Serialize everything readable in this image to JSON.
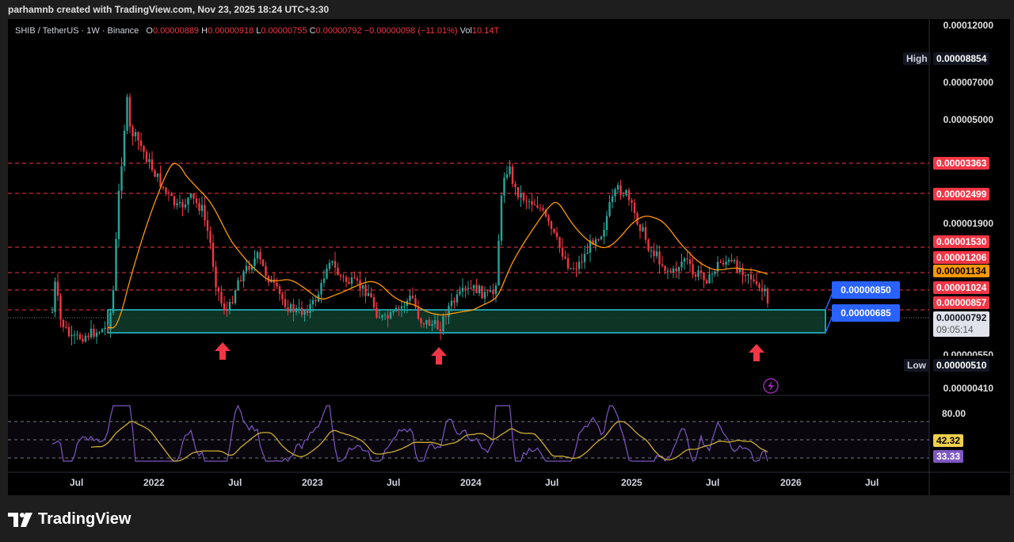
{
  "header": {
    "attribution": "parhamnb created with TradingView.com, Nov 23, 2025 18:24 UTC+3:30"
  },
  "legend": {
    "symbol": "SHIB / TetherUS · 1W · Binance",
    "o_label": "O",
    "o": "0.00000889",
    "h_label": "H",
    "h": "0.00000918",
    "l_label": "L",
    "l": "0.00000755",
    "c_label": "C",
    "c": "0.00000792",
    "change": "−0.00000098 (−11.01%)",
    "vol_label": "Vol",
    "vol": "10.14T"
  },
  "price_axis": {
    "ticks": [
      "0.00012000",
      "0.00007000",
      "0.00005000",
      "0.00001900",
      "0.00000550",
      "0.00000410"
    ],
    "high_label": "High",
    "high_value": "0.00008854",
    "low_label": "Low",
    "low_value": "0.00000510",
    "levels": [
      {
        "value": "0.00003363",
        "color": "#f23645"
      },
      {
        "value": "0.00002499",
        "color": "#f23645"
      },
      {
        "value": "0.00001530",
        "color": "#f23645"
      },
      {
        "value": "0.00001206",
        "color": "#f23645"
      },
      {
        "value": "0.00001134",
        "color": "#ff9800"
      },
      {
        "value": "0.00001024",
        "color": "#f23645"
      },
      {
        "value": "0.00000857",
        "color": "#f23645"
      }
    ],
    "last_price": "0.00000792",
    "countdown": "09:05:14"
  },
  "zone": {
    "top": "0.00000850",
    "bottom": "0.00000685"
  },
  "rsi": {
    "level_80": "80.00",
    "ma_value": "42.32",
    "rsi_value": "33.33"
  },
  "time_axis": [
    "Jul",
    "2022",
    "Jul",
    "2023",
    "Jul",
    "2024",
    "Jul",
    "2025",
    "Jul",
    "2026",
    "Jul"
  ],
  "footer": {
    "brand": "TradingView"
  },
  "colors": {
    "up": "#26a69a",
    "down": "#f23645",
    "ma": "#ff9800",
    "zone_border": "#26c6da",
    "badge_blue": "#2962ff"
  }
}
